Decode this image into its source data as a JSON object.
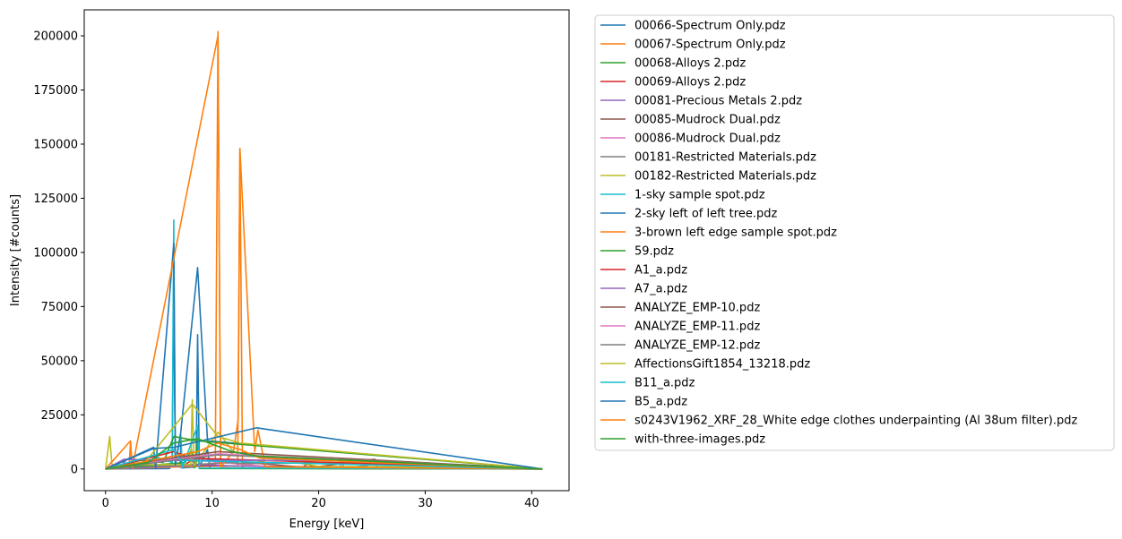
{
  "chart_data": {
    "type": "line",
    "xlabel": "Energy [keV]",
    "ylabel": "Intensity [#counts]",
    "xlim": [
      -2,
      43.5
    ],
    "ylim": [
      -10000,
      212000
    ],
    "xticks": [
      0,
      10,
      20,
      30,
      40
    ],
    "yticks": [
      0,
      25000,
      50000,
      75000,
      100000,
      125000,
      150000,
      175000,
      200000
    ],
    "grid": false,
    "legend_position": "outside-right",
    "series": [
      {
        "name": "00066-Spectrum Only.pdz",
        "color": "#1f77b4",
        "points": [
          [
            0,
            0
          ],
          [
            6.0,
            200
          ],
          [
            6.25,
            3000
          ],
          [
            6.4,
            85000
          ],
          [
            6.55,
            2000
          ],
          [
            7.0,
            800
          ],
          [
            7.06,
            12000
          ],
          [
            7.15,
            500
          ],
          [
            8.5,
            1000
          ],
          [
            8.64,
            62000
          ],
          [
            8.8,
            1000
          ],
          [
            9.57,
            9000
          ],
          [
            9.8,
            300
          ],
          [
            41,
            0
          ]
        ]
      },
      {
        "name": "00067-Spectrum Only.pdz",
        "color": "#ff7f0e",
        "points": [
          [
            0,
            0
          ],
          [
            2.2,
            300
          ],
          [
            2.34,
            12000
          ],
          [
            2.5,
            300
          ],
          [
            10.3,
            1500
          ],
          [
            10.55,
            202000
          ],
          [
            10.8,
            1200
          ],
          [
            12.4,
            1500
          ],
          [
            12.61,
            148000
          ],
          [
            12.85,
            1000
          ],
          [
            14.76,
            4000
          ],
          [
            15.0,
            300
          ],
          [
            41,
            0
          ]
        ]
      },
      {
        "name": "00068-Alloys 2.pdz",
        "color": "#2ca02c",
        "points": [
          [
            0,
            0
          ],
          [
            7.48,
            3000
          ],
          [
            8.05,
            9000
          ],
          [
            8.3,
            500
          ],
          [
            8.64,
            12000
          ],
          [
            8.8,
            200
          ],
          [
            41,
            0
          ]
        ]
      },
      {
        "name": "00069-Alloys 2.pdz",
        "color": "#d62728",
        "points": [
          [
            0,
            0
          ],
          [
            6.4,
            1500
          ],
          [
            7.48,
            2000
          ],
          [
            8.05,
            4000
          ],
          [
            8.64,
            1500
          ],
          [
            41,
            0
          ]
        ]
      },
      {
        "name": "00081-Precious Metals 2.pdz",
        "color": "#9467bd",
        "points": [
          [
            0,
            0
          ],
          [
            1.5,
            300
          ],
          [
            1.75,
            4500
          ],
          [
            2.0,
            300
          ],
          [
            9.7,
            2000
          ],
          [
            11.4,
            1500
          ],
          [
            22.0,
            300
          ],
          [
            22.16,
            4000
          ],
          [
            22.4,
            200
          ],
          [
            24.9,
            2000
          ],
          [
            41,
            0
          ]
        ]
      },
      {
        "name": "00085-Mudrock Dual.pdz",
        "color": "#8c564b",
        "points": [
          [
            0,
            0
          ],
          [
            3.69,
            3000
          ],
          [
            6.4,
            6000
          ],
          [
            18.5,
            800
          ],
          [
            19.0,
            2500
          ],
          [
            19.5,
            800
          ],
          [
            25.27,
            4500
          ],
          [
            25.5,
            300
          ],
          [
            41,
            0
          ]
        ]
      },
      {
        "name": "00086-Mudrock Dual.pdz",
        "color": "#e377c2",
        "points": [
          [
            0,
            0
          ],
          [
            3.69,
            2500
          ],
          [
            6.4,
            5000
          ],
          [
            16.5,
            600
          ],
          [
            41,
            0
          ]
        ]
      },
      {
        "name": "00181-Restricted Materials.pdz",
        "color": "#7f7f7f",
        "points": [
          [
            0,
            0
          ],
          [
            11.9,
            3000
          ],
          [
            12.6,
            2500
          ],
          [
            25.27,
            3000
          ],
          [
            41,
            0
          ]
        ]
      },
      {
        "name": "00182-Restricted Materials.pdz",
        "color": "#bcbd22",
        "points": [
          [
            0,
            0
          ],
          [
            0.39,
            15000
          ],
          [
            0.6,
            2000
          ],
          [
            8.0,
            2000
          ],
          [
            8.14,
            32000
          ],
          [
            8.3,
            1500
          ],
          [
            10.55,
            17000
          ],
          [
            12.0,
            8000
          ],
          [
            20,
            1200
          ],
          [
            30,
            900
          ],
          [
            41,
            0
          ]
        ]
      },
      {
        "name": "1-sky sample spot.pdz",
        "color": "#17becf",
        "points": [
          [
            0,
            0
          ],
          [
            4.51,
            6000
          ],
          [
            6.25,
            3000
          ],
          [
            6.4,
            115000
          ],
          [
            6.55,
            2000
          ],
          [
            7.06,
            16000
          ],
          [
            7.2,
            500
          ],
          [
            8.64,
            20000
          ],
          [
            8.8,
            500
          ],
          [
            41,
            0
          ]
        ]
      },
      {
        "name": "2-sky left of left tree.pdz",
        "color": "#1f77b4",
        "points": [
          [
            0,
            0
          ],
          [
            4.51,
            10000
          ],
          [
            4.7,
            500
          ],
          [
            6.4,
            104000
          ],
          [
            6.55,
            2000
          ],
          [
            7.06,
            17000
          ],
          [
            8.64,
            93000
          ],
          [
            9.57,
            13000
          ],
          [
            41,
            0
          ]
        ]
      },
      {
        "name": "3-brown left edge sample spot.pdz",
        "color": "#ff7f0e",
        "points": [
          [
            0,
            0
          ],
          [
            2.34,
            13000
          ],
          [
            2.5,
            500
          ],
          [
            10.55,
            200000
          ],
          [
            10.8,
            1000
          ],
          [
            12.0,
            8000
          ],
          [
            12.45,
            23000
          ],
          [
            12.61,
            148000
          ],
          [
            14.0,
            8000
          ],
          [
            14.3,
            18000
          ],
          [
            15.0,
            1000
          ],
          [
            41,
            0
          ]
        ]
      },
      {
        "name": "59.pdz",
        "color": "#2ca02c",
        "points": [
          [
            0,
            0
          ],
          [
            3.31,
            4000
          ],
          [
            5.41,
            3000
          ],
          [
            6.4,
            15000
          ],
          [
            8.64,
            13000
          ],
          [
            41,
            0
          ]
        ]
      },
      {
        "name": "A1_a.pdz",
        "color": "#d62728",
        "points": [
          [
            0,
            0
          ],
          [
            6.4,
            8000
          ],
          [
            8.05,
            5000
          ],
          [
            41,
            0
          ]
        ]
      },
      {
        "name": "A7_a.pdz",
        "color": "#9467bd",
        "points": [
          [
            0,
            0
          ],
          [
            1.74,
            4500
          ],
          [
            6.4,
            4000
          ],
          [
            22.16,
            4000
          ],
          [
            41,
            0
          ]
        ]
      },
      {
        "name": "ANALYZE_EMP-10.pdz",
        "color": "#8c564b",
        "points": [
          [
            0,
            0
          ],
          [
            6.4,
            5000
          ],
          [
            10.55,
            8000
          ],
          [
            41,
            0
          ]
        ]
      },
      {
        "name": "ANALYZE_EMP-11.pdz",
        "color": "#e377c2",
        "points": [
          [
            0,
            0
          ],
          [
            6.4,
            4500
          ],
          [
            10.55,
            7000
          ],
          [
            41,
            0
          ]
        ]
      },
      {
        "name": "ANALYZE_EMP-12.pdz",
        "color": "#7f7f7f",
        "points": [
          [
            0,
            0
          ],
          [
            6.4,
            4000
          ],
          [
            10.55,
            6500
          ],
          [
            41,
            0
          ]
        ]
      },
      {
        "name": "AffectionsGift1854_13218.pdz",
        "color": "#bcbd22",
        "points": [
          [
            0,
            0
          ],
          [
            3.69,
            3000
          ],
          [
            8.14,
            30000
          ],
          [
            10.55,
            15000
          ],
          [
            12.61,
            12000
          ],
          [
            41,
            0
          ]
        ]
      },
      {
        "name": "B11_a.pdz",
        "color": "#17becf",
        "points": [
          [
            0,
            0
          ],
          [
            6.4,
            9000
          ],
          [
            7.06,
            4000
          ],
          [
            41,
            0
          ]
        ]
      },
      {
        "name": "B5_a.pdz",
        "color": "#1f77b4",
        "points": [
          [
            0,
            0
          ],
          [
            4.51,
            9500
          ],
          [
            6.4,
            10000
          ],
          [
            14.16,
            19000
          ],
          [
            41,
            0
          ]
        ]
      },
      {
        "name": "s0243V1962_XRF_28_White edge clothes underpainting (Al 38um filter).pdz",
        "color": "#ff7f0e",
        "points": [
          [
            0,
            0
          ],
          [
            8.64,
            8000
          ],
          [
            10.55,
            12000
          ],
          [
            12.61,
            9000
          ],
          [
            14.5,
            5000
          ],
          [
            41,
            0
          ]
        ]
      },
      {
        "name": "with-three-images.pdz",
        "color": "#2ca02c",
        "points": [
          [
            0,
            0
          ],
          [
            2.0,
            1500
          ],
          [
            4.0,
            3000
          ],
          [
            6.4,
            12000
          ],
          [
            8.64,
            14000
          ],
          [
            11.9,
            8000
          ],
          [
            14.16,
            6000
          ],
          [
            41,
            0
          ]
        ]
      }
    ]
  }
}
